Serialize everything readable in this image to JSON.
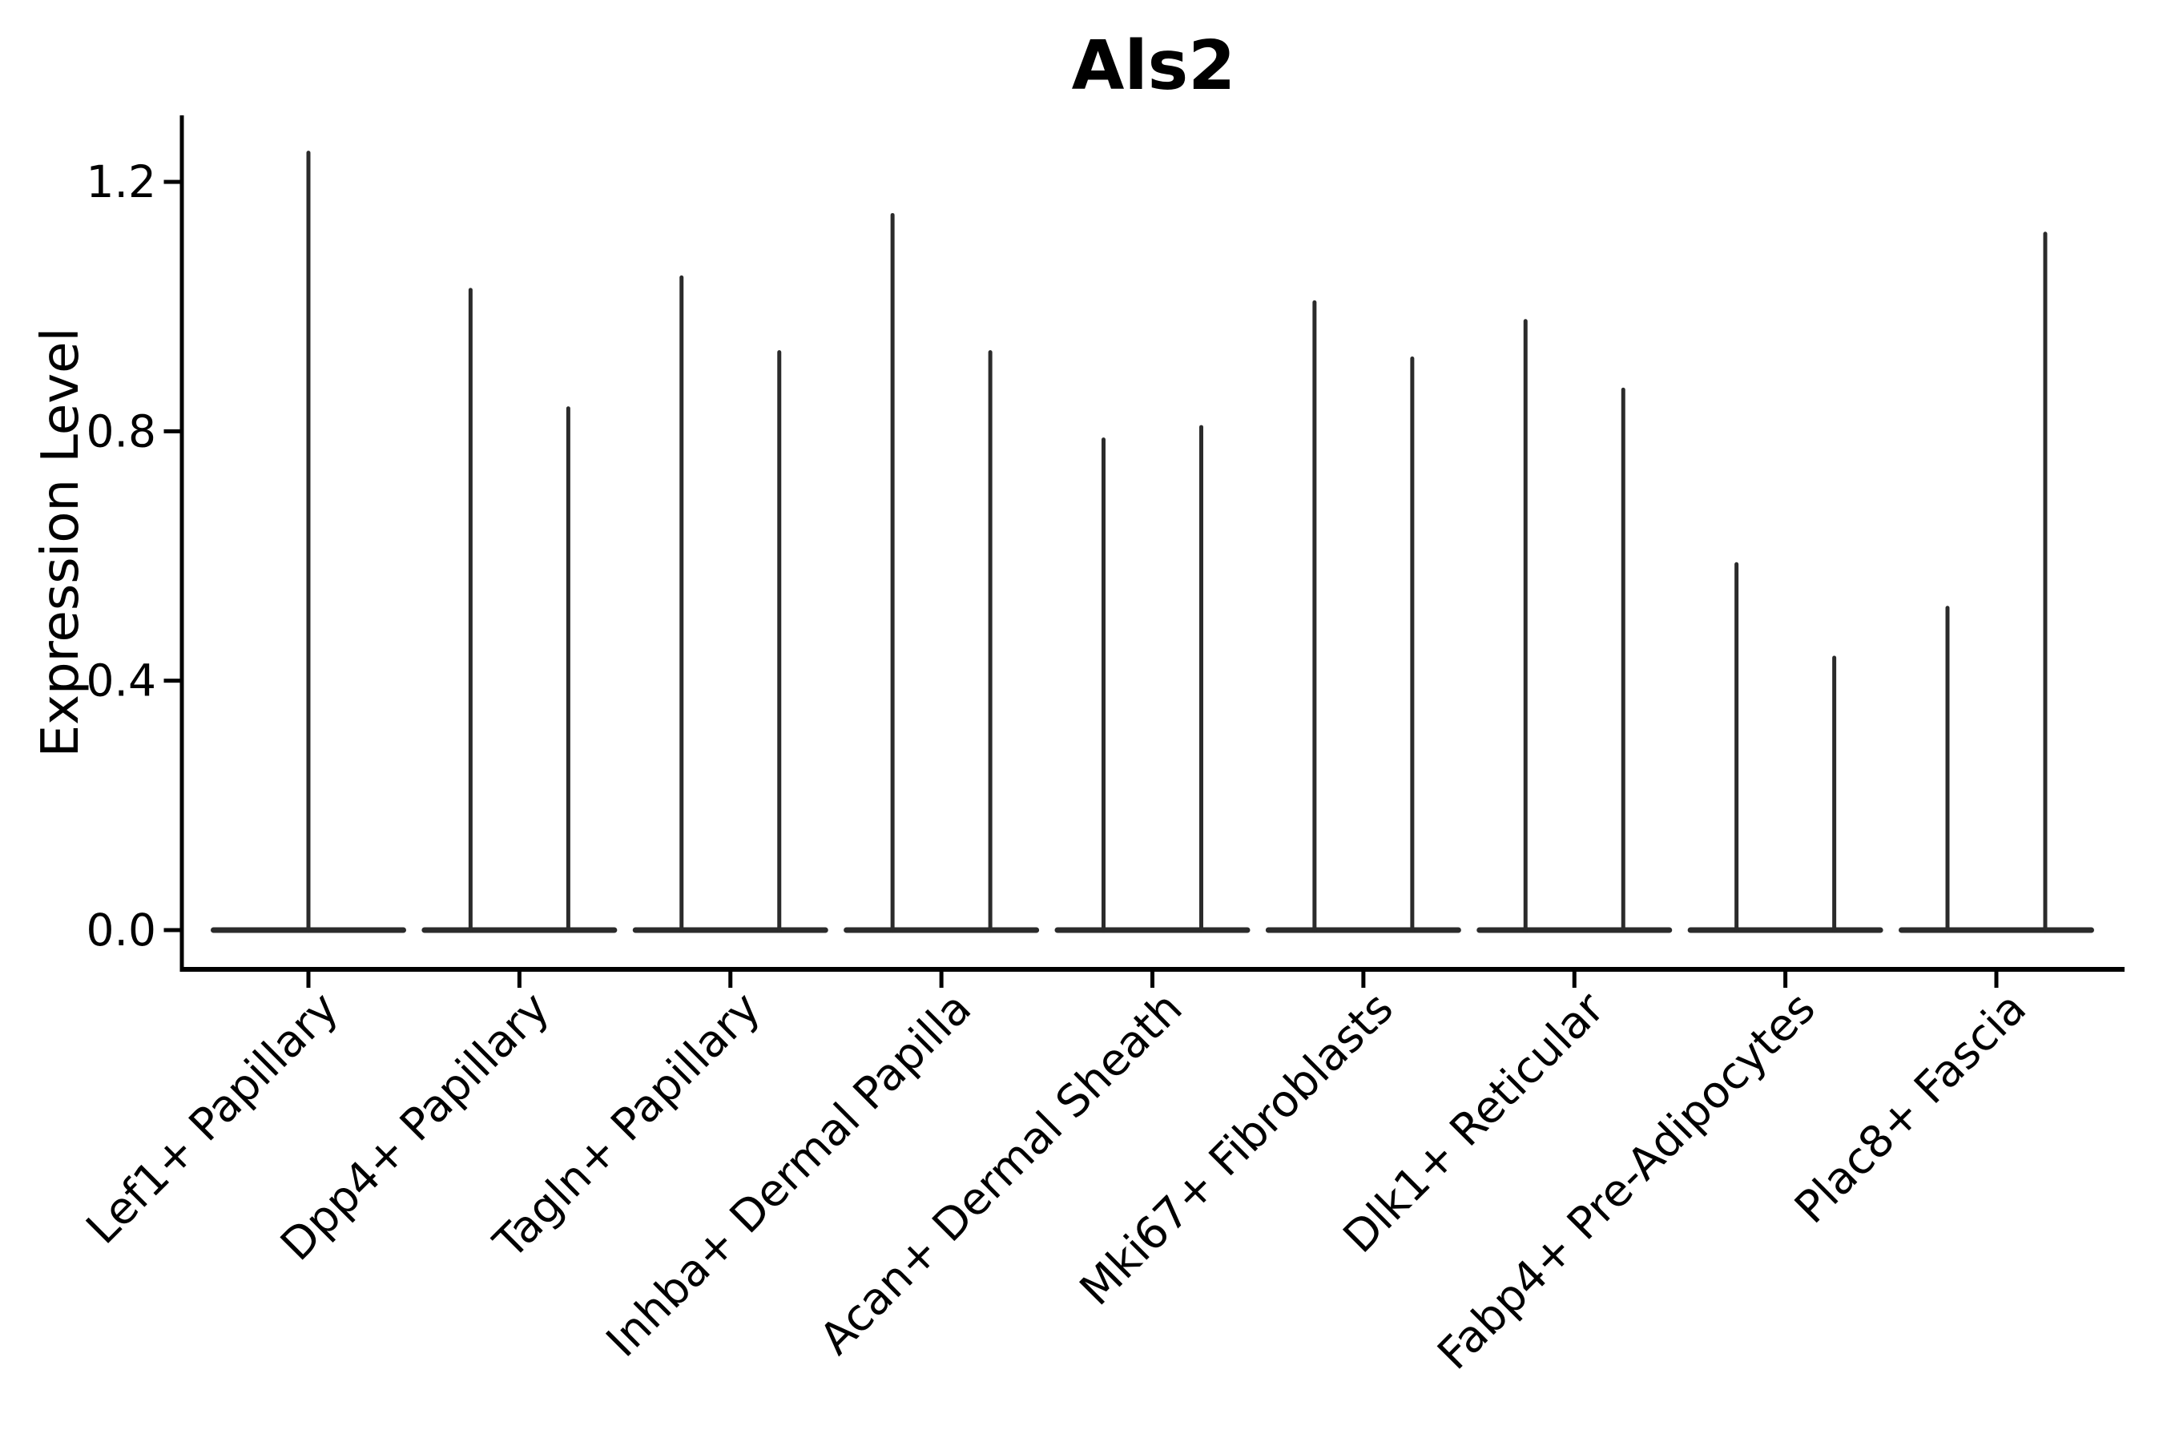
{
  "title": "Als2",
  "colors": {
    "violin": "#2b2b2b",
    "axis": "#000000",
    "text": "#000000",
    "background": "#ffffff"
  },
  "chart_data": {
    "type": "violin",
    "title": "Als2",
    "xlabel": "",
    "ylabel": "Expression Level",
    "ylim": [
      -0.06,
      1.31
    ],
    "yticks": [
      {
        "value": 0.0,
        "label": "0.0"
      },
      {
        "value": 0.4,
        "label": "0.4"
      },
      {
        "value": 0.8,
        "label": "0.8"
      },
      {
        "value": 1.2,
        "label": "1.2"
      }
    ],
    "grid": false,
    "legend": null,
    "categories": [
      "Lef1+ Papillary",
      "Dpp4+ Papillary",
      "Tagln+ Papillary",
      "Inhba+ Dermal Papilla",
      "Acan+ Dermal Sheath",
      "Mki67+ Fibroblasts",
      "Dlk1+ Reticular",
      "Fabp4+ Pre-Adipocytes",
      "Plac8+ Fascia"
    ],
    "series": [
      {
        "category": "Lef1+ Papillary",
        "violins": [
          {
            "baseline": 0,
            "max_expression": 1.25
          }
        ]
      },
      {
        "category": "Dpp4+ Papillary",
        "violins": [
          {
            "baseline": 0,
            "max_expression": 1.03
          },
          {
            "baseline": 0,
            "max_expression": 0.84
          }
        ]
      },
      {
        "category": "Tagln+ Papillary",
        "violins": [
          {
            "baseline": 0,
            "max_expression": 1.05
          },
          {
            "baseline": 0,
            "max_expression": 0.93
          }
        ]
      },
      {
        "category": "Inhba+ Dermal Papilla",
        "violins": [
          {
            "baseline": 0,
            "max_expression": 1.15
          },
          {
            "baseline": 0,
            "max_expression": 0.93
          }
        ]
      },
      {
        "category": "Acan+ Dermal Sheath",
        "violins": [
          {
            "baseline": 0,
            "max_expression": 0.79
          },
          {
            "baseline": 0,
            "max_expression": 0.81
          }
        ]
      },
      {
        "category": "Mki67+ Fibroblasts",
        "violins": [
          {
            "baseline": 0,
            "max_expression": 1.01
          },
          {
            "baseline": 0,
            "max_expression": 0.92
          }
        ]
      },
      {
        "category": "Dlk1+ Reticular",
        "violins": [
          {
            "baseline": 0,
            "max_expression": 0.98
          },
          {
            "baseline": 0,
            "max_expression": 0.87
          }
        ]
      },
      {
        "category": "Fabp4+ Pre-Adipocytes",
        "violins": [
          {
            "baseline": 0,
            "max_expression": 0.59
          },
          {
            "baseline": 0,
            "max_expression": 0.44
          }
        ]
      },
      {
        "category": "Plac8+ Fascia",
        "violins": [
          {
            "baseline": 0,
            "max_expression": 0.52
          },
          {
            "baseline": 0,
            "max_expression": 1.12
          }
        ]
      }
    ]
  }
}
